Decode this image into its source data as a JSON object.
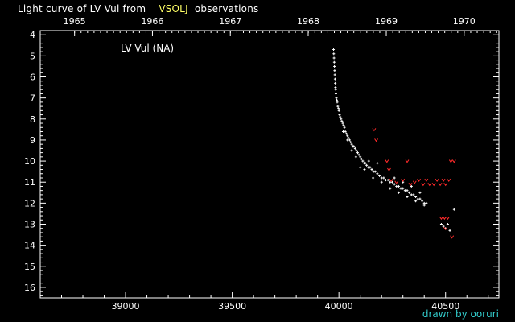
{
  "colors": {
    "background": "#000000",
    "foreground": "#ffffff",
    "highlight": "#ffff66",
    "observation": "#ffffff",
    "upper_limit": "#ff2a2a",
    "credit": "#33cccc"
  },
  "header": {
    "title_prefix": "Light curve of LV Vul from",
    "source": "VSOLJ",
    "title_suffix": "observations"
  },
  "footer": {
    "credit": "drawn by ooruri"
  },
  "chart_data": {
    "type": "scatter",
    "label": "LV Vul (NA)",
    "x_label": "",
    "y_label": "",
    "xlim": [
      38600,
      40750
    ],
    "ylim": [
      16.5,
      3.8
    ],
    "y_inverted": true,
    "x_ticks": [
      39000,
      39500,
      40000,
      40500
    ],
    "y_ticks": [
      4,
      5,
      6,
      7,
      8,
      9,
      10,
      11,
      12,
      13,
      14,
      15,
      16
    ],
    "top_axis": {
      "ticks": [
        {
          "label": "1965",
          "jd": 38761
        },
        {
          "label": "1966",
          "jd": 39126
        },
        {
          "label": "1967",
          "jd": 39491
        },
        {
          "label": "1968",
          "jd": 39856
        },
        {
          "label": "1969",
          "jd": 40222
        },
        {
          "label": "1970",
          "jd": 40587
        }
      ]
    },
    "grid": false,
    "legend": "top-left",
    "series": [
      {
        "kind": "observation",
        "points": [
          [
            39975,
            4.7
          ],
          [
            39976,
            4.9
          ],
          [
            39977,
            5.1
          ],
          [
            39978,
            5.3
          ],
          [
            39979,
            5.5
          ],
          [
            39980,
            5.7
          ],
          [
            39981,
            5.9
          ],
          [
            39982,
            6.1
          ],
          [
            39983,
            6.3
          ],
          [
            39984,
            6.5
          ],
          [
            39985,
            6.6
          ],
          [
            39986,
            6.8
          ],
          [
            39988,
            7.0
          ],
          [
            39990,
            7.1
          ],
          [
            39992,
            7.2
          ],
          [
            39995,
            7.4
          ],
          [
            39998,
            7.5
          ],
          [
            40000,
            7.6
          ],
          [
            40003,
            7.8
          ],
          [
            40006,
            7.9
          ],
          [
            40010,
            8.0
          ],
          [
            40014,
            8.1
          ],
          [
            40018,
            8.2
          ],
          [
            40022,
            8.3
          ],
          [
            40026,
            8.4
          ],
          [
            40030,
            8.6
          ],
          [
            40035,
            8.7
          ],
          [
            40040,
            8.8
          ],
          [
            40045,
            8.9
          ],
          [
            40050,
            9.0
          ],
          [
            40055,
            9.1
          ],
          [
            40060,
            9.2
          ],
          [
            40065,
            9.3
          ],
          [
            40070,
            9.3
          ],
          [
            40076,
            9.4
          ],
          [
            40082,
            9.5
          ],
          [
            40088,
            9.6
          ],
          [
            40094,
            9.7
          ],
          [
            40100,
            9.8
          ],
          [
            40106,
            9.9
          ],
          [
            40112,
            10.0
          ],
          [
            40118,
            10.1
          ],
          [
            40124,
            10.1
          ],
          [
            40130,
            10.2
          ],
          [
            40138,
            10.3
          ],
          [
            40146,
            10.3
          ],
          [
            40154,
            10.4
          ],
          [
            40162,
            10.5
          ],
          [
            40170,
            10.5
          ],
          [
            40180,
            10.6
          ],
          [
            40190,
            10.7
          ],
          [
            40200,
            10.8
          ],
          [
            40210,
            10.8
          ],
          [
            40220,
            10.9
          ],
          [
            40230,
            10.9
          ],
          [
            40240,
            11.0
          ],
          [
            40250,
            11.0
          ],
          [
            40260,
            11.1
          ],
          [
            40270,
            11.2
          ],
          [
            40280,
            11.2
          ],
          [
            40290,
            11.3
          ],
          [
            40300,
            11.3
          ],
          [
            40310,
            11.4
          ],
          [
            40320,
            11.4
          ],
          [
            40330,
            11.5
          ],
          [
            40340,
            11.6
          ],
          [
            40350,
            11.6
          ],
          [
            40360,
            11.7
          ],
          [
            40370,
            11.8
          ],
          [
            40380,
            11.8
          ],
          [
            40390,
            11.9
          ],
          [
            40400,
            12.0
          ],
          [
            40410,
            12.0
          ],
          [
            40020,
            8.6
          ],
          [
            40040,
            9.0
          ],
          [
            40060,
            9.5
          ],
          [
            40080,
            9.8
          ],
          [
            40100,
            10.3
          ],
          [
            40120,
            10.4
          ],
          [
            40140,
            10.0
          ],
          [
            40160,
            10.8
          ],
          [
            40180,
            10.1
          ],
          [
            40200,
            11.0
          ],
          [
            40240,
            11.3
          ],
          [
            40260,
            10.8
          ],
          [
            40280,
            11.5
          ],
          [
            40300,
            11.0
          ],
          [
            40320,
            11.7
          ],
          [
            40340,
            11.2
          ],
          [
            40360,
            11.9
          ],
          [
            40380,
            11.5
          ],
          [
            40400,
            12.1
          ],
          [
            40480,
            13.0
          ],
          [
            40490,
            13.1
          ],
          [
            40500,
            13.2
          ],
          [
            40510,
            13.0
          ],
          [
            40520,
            13.3
          ],
          [
            40540,
            12.3
          ]
        ]
      },
      {
        "kind": "upper_limit",
        "points": [
          [
            40165,
            8.5
          ],
          [
            40175,
            9.0
          ],
          [
            40225,
            10.0
          ],
          [
            40235,
            10.4
          ],
          [
            40245,
            10.9
          ],
          [
            40270,
            11.0
          ],
          [
            40300,
            10.9
          ],
          [
            40320,
            10.0
          ],
          [
            40335,
            11.1
          ],
          [
            40355,
            11.0
          ],
          [
            40375,
            10.9
          ],
          [
            40395,
            11.1
          ],
          [
            40410,
            10.9
          ],
          [
            40425,
            11.1
          ],
          [
            40445,
            11.1
          ],
          [
            40460,
            10.9
          ],
          [
            40475,
            11.1
          ],
          [
            40490,
            10.9
          ],
          [
            40500,
            11.1
          ],
          [
            40515,
            10.9
          ],
          [
            40525,
            10.0
          ],
          [
            40540,
            10.0
          ],
          [
            40480,
            12.7
          ],
          [
            40495,
            12.7
          ],
          [
            40510,
            12.7
          ],
          [
            40500,
            13.2
          ],
          [
            40530,
            13.6
          ]
        ]
      }
    ]
  }
}
